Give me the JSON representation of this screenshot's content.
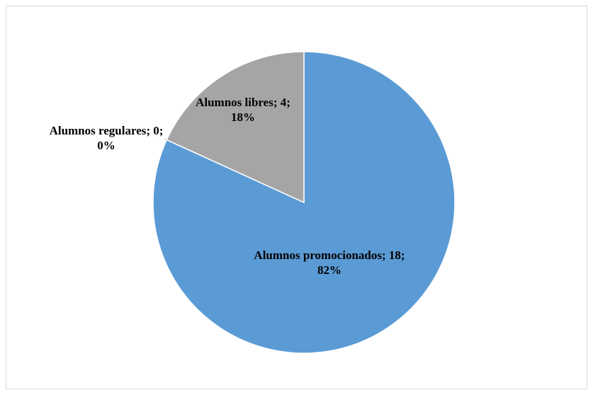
{
  "chart_data": {
    "type": "pie",
    "categories": [
      "Alumnos promocionados",
      "Alumnos regulares",
      "Alumnos libres"
    ],
    "values": [
      18,
      0,
      4
    ],
    "value_labels": [
      "Alumnos promocionados; 18; 82%",
      "Alumnos regulares; 0; 0%",
      "Alumnos libres; 4; 18%"
    ],
    "colors": [
      "#5b9bd5",
      "#ed7d31",
      "#a5a5a5"
    ]
  }
}
